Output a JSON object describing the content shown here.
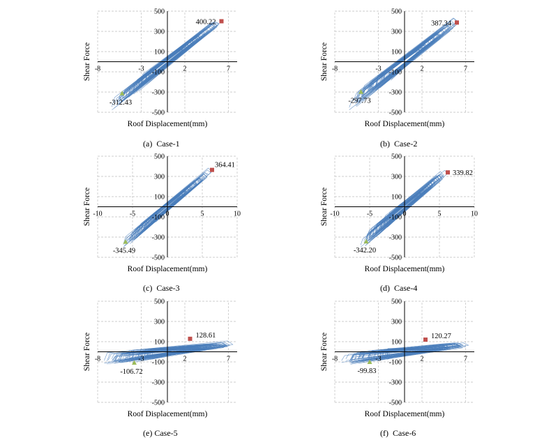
{
  "figure": {
    "captions": [
      "(a)  Case-1",
      "(b)  Case-2",
      "(c)  Case-3",
      "(d)  Case-4",
      "(e)  Case-5",
      "(f)  Case-6"
    ]
  },
  "chart_data": [
    {
      "type": "line",
      "caption": "(a)  Case-1",
      "xlabel": "Roof Displacement(mm)",
      "ylabel": "Shear Force",
      "xlim": [
        -8,
        8
      ],
      "ylim": [
        -500,
        500
      ],
      "xticks": [
        -8,
        -3,
        2,
        7
      ],
      "yticks": [
        -500,
        -300,
        -100,
        100,
        300,
        500
      ],
      "grid": true,
      "hysteresis_envelope": {
        "slope": 65,
        "half_width": 55,
        "extent": [
          -6.5,
          6.5
        ]
      },
      "max_point": {
        "x": 6.2,
        "y": 400.22,
        "label": "400.22",
        "color": "#c0504d"
      },
      "min_point": {
        "x": -5.2,
        "y": -312.43,
        "label": "-312.43",
        "color": "#9bbb59"
      }
    },
    {
      "type": "line",
      "caption": "(b)  Case-2",
      "xlabel": "Roof Displacement(mm)",
      "ylabel": "Shear Force",
      "xlim": [
        -8,
        8
      ],
      "ylim": [
        -500,
        500
      ],
      "xticks": [
        -8,
        -3,
        2,
        7
      ],
      "yticks": [
        -500,
        -300,
        -100,
        100,
        300,
        500
      ],
      "grid": true,
      "hysteresis_envelope": {
        "slope": 65,
        "half_width": 65,
        "extent": [
          -6.5,
          6.5
        ]
      },
      "max_point": {
        "x": 6.0,
        "y": 387.34,
        "label": "387.34",
        "color": "#c0504d"
      },
      "min_point": {
        "x": -5.0,
        "y": -297.73,
        "label": "-297.73",
        "color": "#9bbb59"
      }
    },
    {
      "type": "line",
      "caption": "(c)  Case-3",
      "xlabel": "Roof Displacement(mm)",
      "ylabel": "Shear Force",
      "xlim": [
        -10,
        10
      ],
      "ylim": [
        -500,
        500
      ],
      "xticks": [
        -10,
        -5,
        0,
        5,
        10
      ],
      "yticks": [
        -500,
        -300,
        -100,
        100,
        300,
        500
      ],
      "grid": true,
      "hysteresis_envelope": {
        "slope": 56,
        "half_width": 45,
        "extent": [
          -6.5,
          6.5
        ]
      },
      "max_point": {
        "x": 6.4,
        "y": 364.41,
        "label": "364.41",
        "color": "#c0504d"
      },
      "min_point": {
        "x": -6.0,
        "y": -345.49,
        "label": "-345.49",
        "color": "#9bbb59"
      }
    },
    {
      "type": "line",
      "caption": "(d)  Case-4",
      "xlabel": "Roof Displacement(mm)",
      "ylabel": "Shear Force",
      "xlim": [
        -10,
        10
      ],
      "ylim": [
        -500,
        500
      ],
      "xticks": [
        -10,
        -5,
        0,
        5,
        10
      ],
      "yticks": [
        -500,
        -300,
        -100,
        100,
        300,
        500
      ],
      "grid": true,
      "hysteresis_envelope": {
        "slope": 56,
        "half_width": 55,
        "extent": [
          -6.5,
          6.5
        ]
      },
      "max_point": {
        "x": 6.2,
        "y": 339.82,
        "label": "339.82",
        "color": "#c0504d"
      },
      "min_point": {
        "x": -5.5,
        "y": -342.2,
        "label": "-342.20",
        "color": "#9bbb59"
      }
    },
    {
      "type": "line",
      "caption": "(e) Case-5",
      "xlabel": "Roof Displacement(mm)",
      "ylabel": "Shear Force",
      "xlim": [
        -8,
        8
      ],
      "ylim": [
        -500,
        500
      ],
      "xticks": [
        -8,
        -3,
        2,
        7
      ],
      "yticks": [
        -500,
        -300,
        -100,
        100,
        300,
        500
      ],
      "grid": true,
      "hysteresis_envelope": {
        "slope": 10,
        "half_width": 45,
        "extent": [
          -7.5,
          8
        ]
      },
      "max_point": {
        "x": 2.6,
        "y": 128.61,
        "label": "128.61",
        "color": "#c0504d"
      },
      "min_point": {
        "x": -3.8,
        "y": -106.72,
        "label": "-106.72",
        "color": "#9bbb59"
      }
    },
    {
      "type": "line",
      "caption": "(f)  Case-6",
      "xlabel": "Roof Displacement(mm)",
      "ylabel": "Shear Force",
      "xlim": [
        -8,
        8
      ],
      "ylim": [
        -500,
        500
      ],
      "xticks": [
        -8,
        -3,
        2,
        7
      ],
      "yticks": [
        -500,
        -300,
        -100,
        100,
        300,
        500
      ],
      "grid": true,
      "hysteresis_envelope": {
        "slope": 10,
        "half_width": 45,
        "extent": [
          -7.5,
          8
        ]
      },
      "max_point": {
        "x": 2.4,
        "y": 120.27,
        "label": "120.27",
        "color": "#c0504d"
      },
      "min_point": {
        "x": -4.0,
        "y": -99.83,
        "label": "-99.83",
        "color": "#9bbb59"
      }
    }
  ]
}
